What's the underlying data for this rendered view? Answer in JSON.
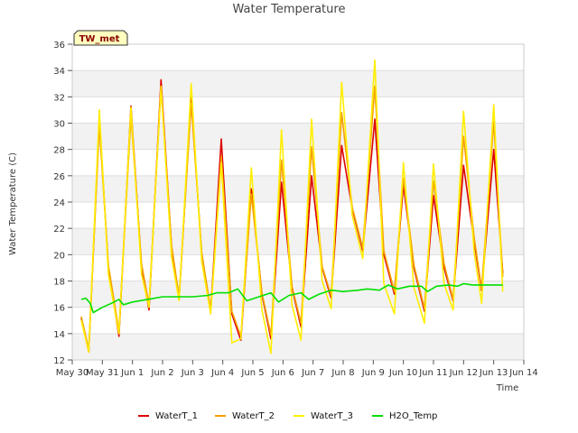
{
  "chart_data": {
    "type": "line",
    "title": "Water Temperature",
    "xlabel": "Time",
    "ylabel": "Water Temperature (C)",
    "badge": "TW_met",
    "ylim": [
      12,
      36
    ],
    "yticks": [
      12,
      14,
      16,
      18,
      20,
      22,
      24,
      26,
      28,
      30,
      32,
      34,
      36
    ],
    "xlim": [
      0,
      15
    ],
    "xticks": [
      {
        "x": 0,
        "label": "May 30"
      },
      {
        "x": 1,
        "label": "May 31"
      },
      {
        "x": 2,
        "label": "Jun 1"
      },
      {
        "x": 3,
        "label": "Jun 2"
      },
      {
        "x": 4,
        "label": "Jun 3"
      },
      {
        "x": 5,
        "label": "Jun 4"
      },
      {
        "x": 6,
        "label": "Jun 5"
      },
      {
        "x": 7,
        "label": "Jun 6"
      },
      {
        "x": 8,
        "label": "Jun 7"
      },
      {
        "x": 9,
        "label": "Jun 8"
      },
      {
        "x": 10,
        "label": "Jun 9"
      },
      {
        "x": 11,
        "label": "Jun 10"
      },
      {
        "x": 12,
        "label": "Jun 11"
      },
      {
        "x": 13,
        "label": "Jun 12"
      },
      {
        "x": 14,
        "label": "Jun 13"
      },
      {
        "x": 15,
        "label": "Jun 14"
      }
    ],
    "grid": true,
    "legend_position": "bottom",
    "series": [
      {
        "name": "WaterT_1",
        "color": "#dd0000",
        "points": [
          [
            0.3,
            15.2
          ],
          [
            0.55,
            12.6
          ],
          [
            0.9,
            30.3
          ],
          [
            1.2,
            19.0
          ],
          [
            1.55,
            13.8
          ],
          [
            1.95,
            31.3
          ],
          [
            2.3,
            19.0
          ],
          [
            2.55,
            15.8
          ],
          [
            2.95,
            33.3
          ],
          [
            3.3,
            20.5
          ],
          [
            3.55,
            16.6
          ],
          [
            3.95,
            32.0
          ],
          [
            4.3,
            20.0
          ],
          [
            4.6,
            15.7
          ],
          [
            4.95,
            28.8
          ],
          [
            5.3,
            15.5
          ],
          [
            5.6,
            13.5
          ],
          [
            5.95,
            25.0
          ],
          [
            6.3,
            17.0
          ],
          [
            6.6,
            13.6
          ],
          [
            6.95,
            25.5
          ],
          [
            7.3,
            17.5
          ],
          [
            7.6,
            14.5
          ],
          [
            7.95,
            26.0
          ],
          [
            8.3,
            19.0
          ],
          [
            8.6,
            16.7
          ],
          [
            8.95,
            28.3
          ],
          [
            9.3,
            23.5
          ],
          [
            9.65,
            20.3
          ],
          [
            10.05,
            30.3
          ],
          [
            10.35,
            20.0
          ],
          [
            10.7,
            17.0
          ],
          [
            11.0,
            25.3
          ],
          [
            11.35,
            19.0
          ],
          [
            11.7,
            15.7
          ],
          [
            12.0,
            24.5
          ],
          [
            12.35,
            19.0
          ],
          [
            12.65,
            16.5
          ],
          [
            13.0,
            26.8
          ],
          [
            13.35,
            21.0
          ],
          [
            13.6,
            17.3
          ],
          [
            14.0,
            28.0
          ],
          [
            14.3,
            18.6
          ]
        ]
      },
      {
        "name": "WaterT_2",
        "color": "#f5a000",
        "points": [
          [
            0.3,
            15.3
          ],
          [
            0.55,
            12.8
          ],
          [
            0.9,
            29.8
          ],
          [
            1.2,
            19.2
          ],
          [
            1.55,
            14.2
          ],
          [
            1.95,
            30.5
          ],
          [
            2.3,
            19.3
          ],
          [
            2.55,
            16.2
          ],
          [
            2.95,
            32.7
          ],
          [
            3.3,
            20.7
          ],
          [
            3.55,
            16.8
          ],
          [
            3.95,
            31.5
          ],
          [
            4.3,
            20.2
          ],
          [
            4.6,
            15.8
          ],
          [
            4.95,
            27.5
          ],
          [
            5.3,
            15.7
          ],
          [
            5.6,
            13.8
          ],
          [
            5.95,
            24.6
          ],
          [
            6.3,
            17.1
          ],
          [
            6.6,
            13.9
          ],
          [
            6.95,
            27.2
          ],
          [
            7.3,
            17.6
          ],
          [
            7.6,
            14.8
          ],
          [
            7.95,
            28.2
          ],
          [
            8.3,
            19.1
          ],
          [
            8.6,
            16.9
          ],
          [
            8.95,
            30.8
          ],
          [
            9.3,
            23.6
          ],
          [
            9.65,
            20.5
          ],
          [
            10.05,
            32.8
          ],
          [
            10.35,
            20.3
          ],
          [
            10.7,
            17.2
          ],
          [
            11.0,
            25.8
          ],
          [
            11.35,
            19.2
          ],
          [
            11.7,
            15.9
          ],
          [
            12.0,
            25.6
          ],
          [
            12.35,
            19.3
          ],
          [
            12.65,
            16.6
          ],
          [
            13.0,
            29.0
          ],
          [
            13.35,
            21.3
          ],
          [
            13.6,
            17.4
          ],
          [
            14.0,
            30.1
          ],
          [
            14.3,
            18.3
          ]
        ]
      },
      {
        "name": "WaterT_3",
        "color": "#ffee00",
        "points": [
          [
            0.3,
            15.0
          ],
          [
            0.55,
            12.6
          ],
          [
            0.9,
            31.0
          ],
          [
            1.2,
            18.5
          ],
          [
            1.55,
            14.0
          ],
          [
            1.95,
            31.2
          ],
          [
            2.3,
            18.5
          ],
          [
            2.55,
            16.0
          ],
          [
            2.95,
            32.8
          ],
          [
            3.3,
            19.8
          ],
          [
            3.55,
            16.5
          ],
          [
            3.95,
            33.0
          ],
          [
            4.3,
            19.5
          ],
          [
            4.6,
            15.5
          ],
          [
            4.95,
            27.0
          ],
          [
            5.3,
            13.3
          ],
          [
            5.6,
            13.6
          ],
          [
            5.95,
            26.6
          ],
          [
            6.3,
            15.8
          ],
          [
            6.6,
            12.5
          ],
          [
            6.95,
            29.5
          ],
          [
            7.3,
            16.2
          ],
          [
            7.6,
            13.5
          ],
          [
            7.95,
            30.3
          ],
          [
            8.3,
            18.0
          ],
          [
            8.6,
            15.9
          ],
          [
            8.95,
            33.1
          ],
          [
            9.3,
            23.0
          ],
          [
            9.65,
            19.7
          ],
          [
            10.05,
            34.8
          ],
          [
            10.35,
            17.8
          ],
          [
            10.7,
            15.5
          ],
          [
            11.0,
            27.0
          ],
          [
            11.35,
            17.5
          ],
          [
            11.7,
            14.8
          ],
          [
            12.0,
            26.9
          ],
          [
            12.35,
            17.8
          ],
          [
            12.65,
            15.8
          ],
          [
            13.0,
            30.9
          ],
          [
            13.35,
            20.2
          ],
          [
            13.6,
            16.3
          ],
          [
            14.0,
            31.4
          ],
          [
            14.3,
            17.2
          ]
        ]
      },
      {
        "name": "H2O_Temp",
        "color": "#00e000",
        "points": [
          [
            0.3,
            16.6
          ],
          [
            0.45,
            16.7
          ],
          [
            0.6,
            16.3
          ],
          [
            0.7,
            15.6
          ],
          [
            1.0,
            16.0
          ],
          [
            1.3,
            16.3
          ],
          [
            1.55,
            16.6
          ],
          [
            1.7,
            16.2
          ],
          [
            2.0,
            16.4
          ],
          [
            2.5,
            16.6
          ],
          [
            3.0,
            16.8
          ],
          [
            3.5,
            16.8
          ],
          [
            4.0,
            16.8
          ],
          [
            4.5,
            16.9
          ],
          [
            4.8,
            17.1
          ],
          [
            5.2,
            17.1
          ],
          [
            5.5,
            17.4
          ],
          [
            5.8,
            16.5
          ],
          [
            6.2,
            16.8
          ],
          [
            6.6,
            17.1
          ],
          [
            6.85,
            16.4
          ],
          [
            7.2,
            16.9
          ],
          [
            7.6,
            17.1
          ],
          [
            7.85,
            16.6
          ],
          [
            8.2,
            17.0
          ],
          [
            8.6,
            17.3
          ],
          [
            9.0,
            17.2
          ],
          [
            9.5,
            17.3
          ],
          [
            9.8,
            17.4
          ],
          [
            10.2,
            17.3
          ],
          [
            10.5,
            17.7
          ],
          [
            10.8,
            17.4
          ],
          [
            11.2,
            17.6
          ],
          [
            11.6,
            17.6
          ],
          [
            11.8,
            17.2
          ],
          [
            12.1,
            17.6
          ],
          [
            12.5,
            17.7
          ],
          [
            12.8,
            17.6
          ],
          [
            13.0,
            17.8
          ],
          [
            13.3,
            17.7
          ],
          [
            13.8,
            17.7
          ],
          [
            14.3,
            17.7
          ]
        ]
      }
    ]
  }
}
